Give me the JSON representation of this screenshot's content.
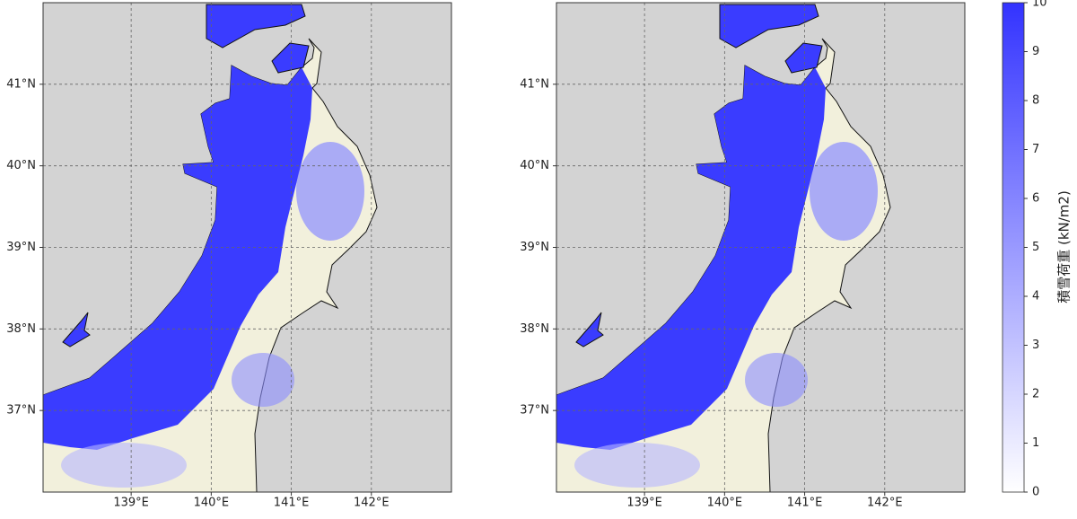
{
  "maps": [
    {
      "lon_range": [
        137.9,
        143.0
      ],
      "lat_range": [
        36.0,
        42.0
      ],
      "lon_ticks": [
        {
          "value": 139,
          "label": "139°E"
        },
        {
          "value": 140,
          "label": "140°E"
        },
        {
          "value": 141,
          "label": "141°E"
        },
        {
          "value": 142,
          "label": "142°E"
        }
      ],
      "lat_ticks": [
        {
          "value": 37,
          "label": "37°N"
        },
        {
          "value": 38,
          "label": "38°N"
        },
        {
          "value": 39,
          "label": "39°N"
        },
        {
          "value": 40,
          "label": "40°N"
        },
        {
          "value": 41,
          "label": "41°N"
        }
      ]
    },
    {
      "lon_range": [
        137.9,
        143.0
      ],
      "lat_range": [
        36.0,
        42.0
      ],
      "lon_ticks": [
        {
          "value": 139,
          "label": "139°E"
        },
        {
          "value": 140,
          "label": "140°E"
        },
        {
          "value": 141,
          "label": "141°E"
        },
        {
          "value": 142,
          "label": "142°E"
        }
      ],
      "lat_ticks": [
        {
          "value": 37,
          "label": "37°N"
        },
        {
          "value": 38,
          "label": "38°N"
        },
        {
          "value": 39,
          "label": "39°N"
        },
        {
          "value": 40,
          "label": "40°N"
        },
        {
          "value": 41,
          "label": "41°N"
        }
      ]
    }
  ],
  "colorbar": {
    "label": "積雪荷重 (kN/m2)",
    "range": [
      0,
      10
    ],
    "ticks": [
      0,
      1,
      2,
      3,
      4,
      5,
      6,
      7,
      8,
      9,
      10
    ],
    "colors": [
      "#ffffff",
      "#3333ff"
    ]
  }
}
